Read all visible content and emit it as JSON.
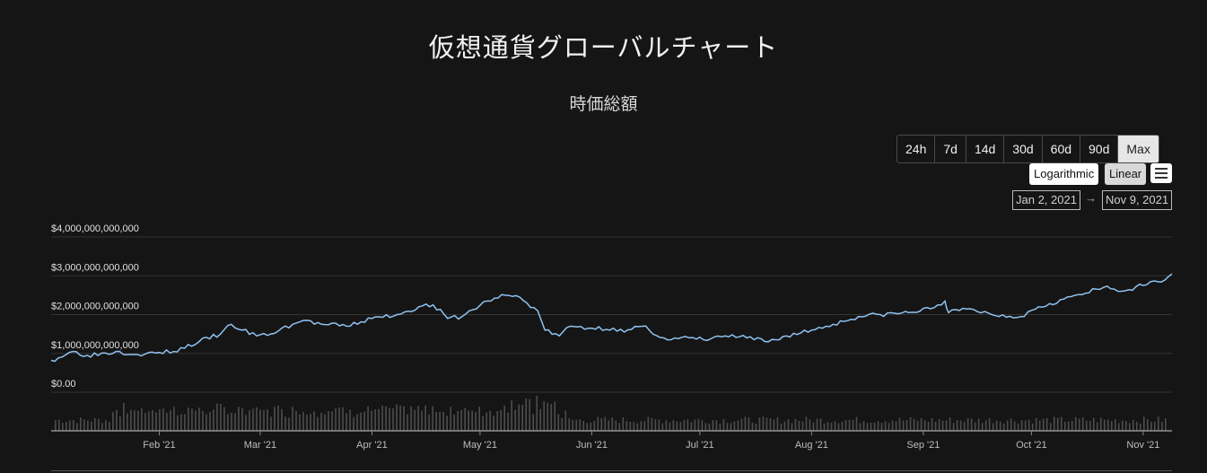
{
  "title": "仮想通貨グローバルチャート",
  "subtitle": "時価総額",
  "range_buttons": [
    "24h",
    "7d",
    "14d",
    "30d",
    "60d",
    "90d",
    "Max"
  ],
  "active_range": "Max",
  "scale": {
    "log_label": "Logarithmic",
    "linear_label": "Linear",
    "active": "Linear"
  },
  "menu_icon": "hamburger-menu-icon",
  "date_range": {
    "from": "Jan 2, 2021",
    "arrow": "→",
    "to": "Nov 9, 2021"
  },
  "colors": {
    "background": "#151515",
    "line": "#8fc3f0",
    "volume": "#4d4d4d",
    "grid": "#333333"
  },
  "chart_data": {
    "type": "line",
    "title": "時価総額",
    "ylim": [
      0,
      4000000000000
    ],
    "y_ticks": [
      {
        "value": 0,
        "label": "$0.00"
      },
      {
        "value": 1000000000000,
        "label": "$1,000,000,000,000"
      },
      {
        "value": 2000000000000,
        "label": "$2,000,000,000,000"
      },
      {
        "value": 3000000000000,
        "label": "$3,000,000,000,000"
      },
      {
        "value": 4000000000000,
        "label": "$4,000,000,000,000"
      }
    ],
    "x_ticks": [
      {
        "date": "2021-02-01",
        "label": "Feb '21"
      },
      {
        "date": "2021-03-01",
        "label": "Mar '21"
      },
      {
        "date": "2021-04-01",
        "label": "Apr '21"
      },
      {
        "date": "2021-05-01",
        "label": "May '21"
      },
      {
        "date": "2021-06-01",
        "label": "Jun '21"
      },
      {
        "date": "2021-07-01",
        "label": "Jul '21"
      },
      {
        "date": "2021-08-01",
        "label": "Aug '21"
      },
      {
        "date": "2021-09-01",
        "label": "Sep '21"
      },
      {
        "date": "2021-10-01",
        "label": "Oct '21"
      },
      {
        "date": "2021-11-01",
        "label": "Nov '21"
      }
    ],
    "xlim": [
      "2021-01-02",
      "2021-11-09"
    ],
    "grid": true,
    "series": [
      {
        "points": [
          [
            "2021-01-02",
            820000000000
          ],
          [
            "2021-01-08",
            1050000000000
          ],
          [
            "2021-01-12",
            950000000000
          ],
          [
            "2021-01-20",
            1050000000000
          ],
          [
            "2021-01-28",
            980000000000
          ],
          [
            "2021-02-05",
            1050000000000
          ],
          [
            "2021-02-12",
            1300000000000
          ],
          [
            "2021-02-18",
            1500000000000
          ],
          [
            "2021-02-21",
            1750000000000
          ],
          [
            "2021-02-24",
            1600000000000
          ],
          [
            "2021-02-28",
            1450000000000
          ],
          [
            "2021-03-04",
            1500000000000
          ],
          [
            "2021-03-10",
            1750000000000
          ],
          [
            "2021-03-13",
            1850000000000
          ],
          [
            "2021-03-18",
            1750000000000
          ],
          [
            "2021-03-25",
            1700000000000
          ],
          [
            "2021-04-01",
            1900000000000
          ],
          [
            "2021-04-08",
            2000000000000
          ],
          [
            "2021-04-14",
            2200000000000
          ],
          [
            "2021-04-18",
            2250000000000
          ],
          [
            "2021-04-22",
            1900000000000
          ],
          [
            "2021-04-26",
            1950000000000
          ],
          [
            "2021-05-03",
            2350000000000
          ],
          [
            "2021-05-08",
            2500000000000
          ],
          [
            "2021-05-12",
            2450000000000
          ],
          [
            "2021-05-14",
            2300000000000
          ],
          [
            "2021-05-17",
            2100000000000
          ],
          [
            "2021-05-19",
            1600000000000
          ],
          [
            "2021-05-23",
            1450000000000
          ],
          [
            "2021-05-26",
            1700000000000
          ],
          [
            "2021-06-01",
            1650000000000
          ],
          [
            "2021-06-07",
            1650000000000
          ],
          [
            "2021-06-10",
            1550000000000
          ],
          [
            "2021-06-15",
            1700000000000
          ],
          [
            "2021-06-22",
            1350000000000
          ],
          [
            "2021-06-28",
            1400000000000
          ],
          [
            "2021-07-02",
            1350000000000
          ],
          [
            "2021-07-08",
            1450000000000
          ],
          [
            "2021-07-14",
            1400000000000
          ],
          [
            "2021-07-20",
            1300000000000
          ],
          [
            "2021-07-25",
            1450000000000
          ],
          [
            "2021-08-01",
            1600000000000
          ],
          [
            "2021-08-07",
            1750000000000
          ],
          [
            "2021-08-14",
            1950000000000
          ],
          [
            "2021-08-20",
            2000000000000
          ],
          [
            "2021-08-28",
            2050000000000
          ],
          [
            "2021-09-03",
            2150000000000
          ],
          [
            "2021-09-07",
            2350000000000
          ],
          [
            "2021-09-08",
            2050000000000
          ],
          [
            "2021-09-14",
            2150000000000
          ],
          [
            "2021-09-20",
            2000000000000
          ],
          [
            "2021-09-28",
            1950000000000
          ],
          [
            "2021-10-03",
            2200000000000
          ],
          [
            "2021-10-10",
            2400000000000
          ],
          [
            "2021-10-16",
            2550000000000
          ],
          [
            "2021-10-21",
            2700000000000
          ],
          [
            "2021-10-26",
            2600000000000
          ],
          [
            "2021-11-01",
            2750000000000
          ],
          [
            "2021-11-05",
            2850000000000
          ],
          [
            "2021-11-09",
            3050000000000
          ]
        ]
      }
    ],
    "volume_bars": true
  }
}
